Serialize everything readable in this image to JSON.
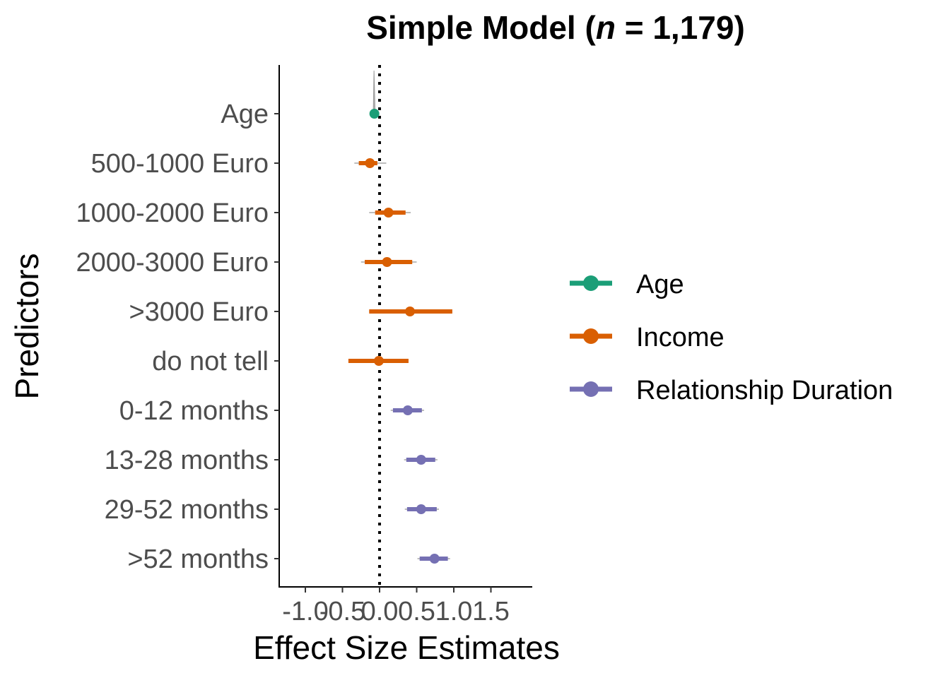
{
  "chart_data": {
    "type": "scatter",
    "subtype": "coefficient plot with confidence intervals",
    "title_parts": [
      "Simple Model (",
      "n",
      " = 1,179)"
    ],
    "xlabel": "Effect Size Estimates",
    "ylabel": "Predictors",
    "xlim": [
      -1.25,
      2.0
    ],
    "x_ticks": [
      "-1.0",
      "-0.5",
      "0.0",
      "0.5",
      "1.0",
      "1.5"
    ],
    "x_tick_values": [
      -1.0,
      -0.5,
      0.0,
      0.5,
      1.0,
      1.5
    ],
    "reference_line": {
      "x": 0,
      "style": "dotted"
    },
    "grid": false,
    "legend": {
      "placement": "right",
      "items": [
        {
          "label": "Age",
          "color": "#1b9e77"
        },
        {
          "label": "Income",
          "color": "#d95f02"
        },
        {
          "label": "Relationship Duration",
          "color": "#7570b3"
        }
      ]
    },
    "series": [
      {
        "name": "Age",
        "color": "#1b9e77",
        "points": [
          {
            "label": "Age",
            "estimate": -0.07,
            "ci_inner": [
              -0.075,
              -0.065
            ],
            "ci_outer": [
              -0.08,
              -0.06
            ]
          }
        ]
      },
      {
        "name": "Income",
        "color": "#d95f02",
        "points": [
          {
            "label": "500-1000 Euro",
            "estimate": -0.13,
            "ci_inner": [
              -0.28,
              -0.03
            ],
            "ci_outer": [
              -0.34,
              0.09
            ]
          },
          {
            "label": "1000-2000 Euro",
            "estimate": 0.12,
            "ci_inner": [
              -0.06,
              0.35
            ],
            "ci_outer": [
              -0.14,
              0.42
            ]
          },
          {
            "label": "2000-3000 Euro",
            "estimate": 0.1,
            "ci_inner": [
              -0.2,
              0.44
            ],
            "ci_outer": [
              -0.25,
              0.5
            ]
          },
          {
            "label": ">3000 Euro",
            "estimate": 0.41,
            "ci_inner": [
              -0.14,
              0.98
            ],
            "ci_outer": [
              -0.14,
              0.98
            ]
          },
          {
            "label": "do not tell",
            "estimate": -0.01,
            "ci_inner": [
              -0.42,
              0.39
            ],
            "ci_outer": [
              -0.42,
              0.39
            ]
          }
        ]
      },
      {
        "name": "Relationship Duration",
        "color": "#7570b3",
        "points": [
          {
            "label": "0-12 months",
            "estimate": 0.38,
            "ci_inner": [
              0.18,
              0.57
            ],
            "ci_outer": [
              0.15,
              0.6
            ]
          },
          {
            "label": "13-28 months",
            "estimate": 0.56,
            "ci_inner": [
              0.36,
              0.75
            ],
            "ci_outer": [
              0.33,
              0.78
            ]
          },
          {
            "label": "29-52 months",
            "estimate": 0.56,
            "ci_inner": [
              0.37,
              0.77
            ],
            "ci_outer": [
              0.34,
              0.8
            ]
          },
          {
            "label": ">52 months",
            "estimate": 0.74,
            "ci_inner": [
              0.54,
              0.92
            ],
            "ci_outer": [
              0.51,
              0.95
            ]
          }
        ]
      }
    ]
  }
}
